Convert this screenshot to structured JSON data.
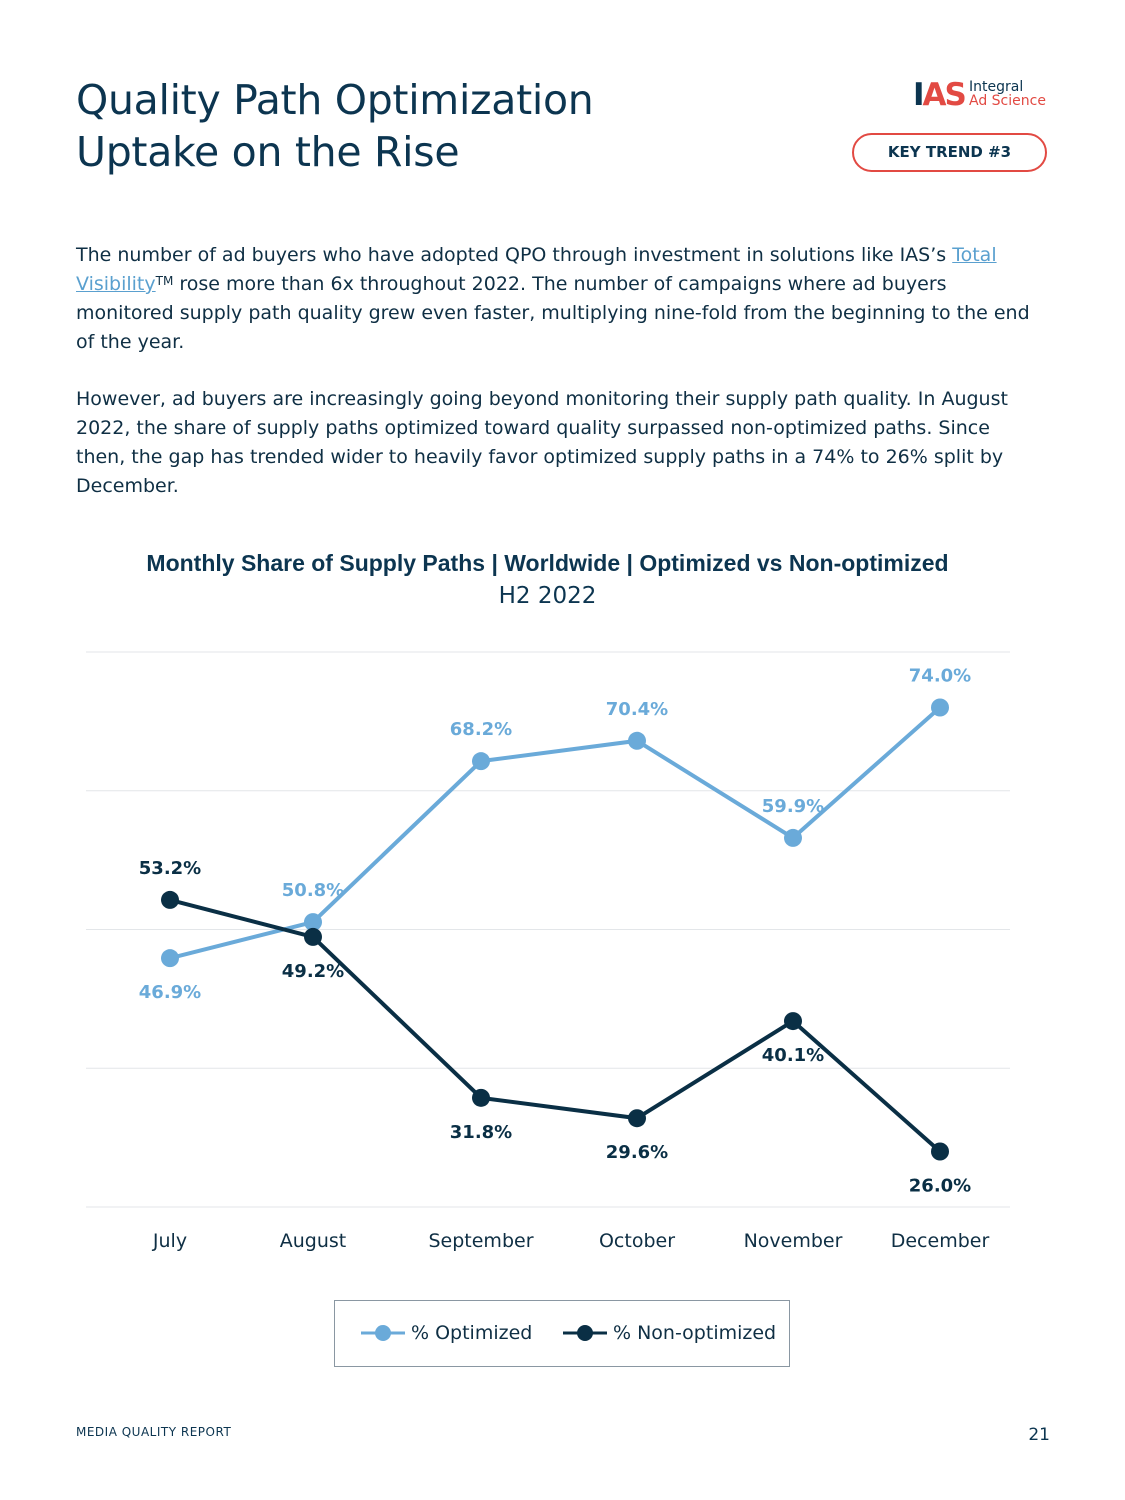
{
  "page": {
    "title_line1": "Quality Path Optimization",
    "title_line2": "Uptake on the Rise",
    "logo_mark_i": "I",
    "logo_mark_rest": "AS",
    "logo_text_line1": "Integral",
    "logo_text_line2": "Ad Science",
    "badge": "KEY TREND #3",
    "paragraph1_pre": "The number of ad buyers who have adopted QPO through investment in solutions like IAS’s ",
    "paragraph1_link": "Total Visibility",
    "paragraph1_tm": "TM",
    "paragraph1_post": " rose more than 6x throughout 2022. The number of campaigns where ad buyers monitored supply path quality grew even faster, multiplying nine-fold from the beginning to the end of the year.",
    "paragraph2": "However, ad buyers are increasingly going beyond monitoring their supply path quality. In August 2022, the share of supply paths optimized toward quality surpassed non-optimized paths. Since then, the gap has trended wider to heavily favor optimized supply paths in a 74% to 26% split by December.",
    "footer_left": "MEDIA QUALITY REPORT",
    "footer_right": "21"
  },
  "chart_data": {
    "type": "line",
    "title": "Monthly Share of Supply Paths | Worldwide | Optimized vs Non-optimized",
    "subtitle": "H2 2022",
    "categories": [
      "July",
      "August",
      "September",
      "October",
      "November",
      "December"
    ],
    "series": [
      {
        "name": "% Optimized",
        "color": "#6aaad9",
        "values": [
          46.9,
          50.8,
          68.2,
          70.4,
          59.9,
          74.0
        ],
        "labels": [
          "46.9%",
          "50.8%",
          "68.2%",
          "70.4%",
          "59.9%",
          "74.0%"
        ]
      },
      {
        "name": "% Non-optimized",
        "color": "#0a2f45",
        "values": [
          53.2,
          49.2,
          31.8,
          29.6,
          40.1,
          26.0
        ],
        "labels": [
          "53.2%",
          "49.2%",
          "31.8%",
          "29.6%",
          "40.1%",
          "26.0%"
        ]
      }
    ],
    "ylim": [
      20,
      80
    ],
    "grid": true,
    "legend_position": "bottom"
  }
}
